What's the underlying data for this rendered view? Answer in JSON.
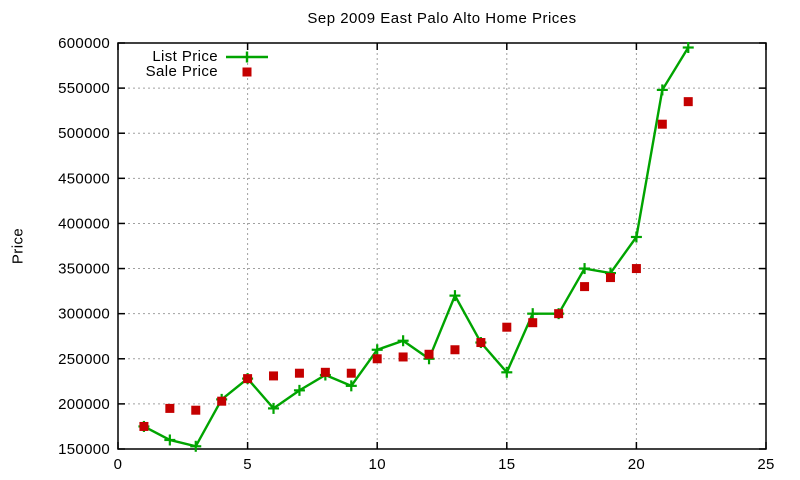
{
  "chart_data": {
    "type": "line",
    "title": "Sep 2009 East Palo Alto Home Prices",
    "xlabel": "",
    "ylabel": "Price",
    "xlim": [
      0,
      25
    ],
    "ylim": [
      150000,
      600000
    ],
    "x_ticks": [
      0,
      5,
      10,
      15,
      20,
      25
    ],
    "y_ticks": [
      150000,
      200000,
      250000,
      300000,
      350000,
      400000,
      450000,
      500000,
      550000,
      600000
    ],
    "grid": true,
    "grid_color": "#a0a0a0",
    "axis_color": "#000000",
    "legend_position": "top-left-inside",
    "x": [
      1,
      2,
      3,
      4,
      5,
      6,
      7,
      8,
      9,
      10,
      11,
      12,
      13,
      14,
      15,
      16,
      17,
      18,
      19,
      20,
      21,
      22
    ],
    "series": [
      {
        "name": "List Price",
        "style": "line-with-plus-markers",
        "color": "#00a400",
        "values": [
          175000,
          160000,
          153000,
          205000,
          228000,
          195000,
          215000,
          232000,
          220000,
          260000,
          270000,
          250000,
          320000,
          268000,
          235000,
          300000,
          300000,
          350000,
          345000,
          385000,
          548000,
          595000
        ]
      },
      {
        "name": "Sale Price",
        "style": "square-points",
        "color": "#c40000",
        "values": [
          175000,
          195000,
          193000,
          203000,
          228000,
          231000,
          234000,
          235000,
          234000,
          250000,
          252000,
          255000,
          260000,
          268000,
          285000,
          290000,
          300000,
          330000,
          340000,
          350000,
          510000,
          535000
        ]
      }
    ]
  }
}
